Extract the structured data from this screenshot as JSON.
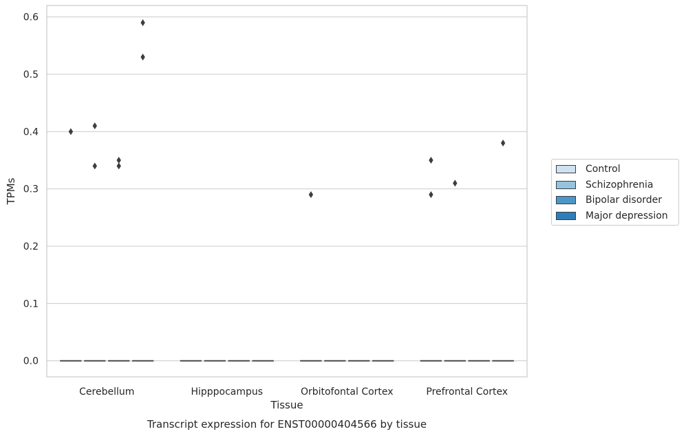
{
  "chart_data": {
    "type": "box",
    "title": "",
    "caption": "Transcript expression for ENST00000404566 by tissue",
    "xlabel": "Tissue",
    "ylabel": "TPMs",
    "ylim": [
      -0.028,
      0.62
    ],
    "yticks": [
      0.0,
      0.1,
      0.2,
      0.3,
      0.4,
      0.5,
      0.6
    ],
    "ytick_labels": [
      "0.0",
      "0.1",
      "0.2",
      "0.3",
      "0.4",
      "0.5",
      "0.6"
    ],
    "grid": true,
    "legend_position": "right, outside",
    "categories": [
      "Cerebellum",
      "Hipppocampus",
      "Orbitofontal Cortex",
      "Prefrontal Cortex"
    ],
    "series": [
      {
        "name": "Control",
        "color": "#d0e1f2",
        "boxes": [
          {
            "median": 0.0
          },
          {
            "median": 0.0
          },
          {
            "median": 0.0
          },
          {
            "median": 0.0
          }
        ],
        "outliers": [
          [
            0.4
          ],
          [],
          [
            0.29
          ],
          [
            0.29,
            0.35
          ]
        ]
      },
      {
        "name": "Schizophrenia",
        "color": "#94c4df",
        "boxes": [
          {
            "median": 0.0
          },
          {
            "median": 0.0
          },
          {
            "median": 0.0
          },
          {
            "median": 0.0
          }
        ],
        "outliers": [
          [
            0.34,
            0.41
          ],
          [],
          [],
          [
            0.31
          ]
        ]
      },
      {
        "name": "Bipolar disorder",
        "color": "#4a98c9",
        "boxes": [
          {
            "median": 0.0
          },
          {
            "median": 0.0
          },
          {
            "median": 0.0
          },
          {
            "median": 0.0
          }
        ],
        "outliers": [
          [
            0.34,
            0.35
          ],
          [],
          [],
          []
        ]
      },
      {
        "name": "Major depression",
        "color": "#2e7ebc",
        "boxes": [
          {
            "median": 0.0
          },
          {
            "median": 0.0
          },
          {
            "median": 0.0
          },
          {
            "median": 0.0
          }
        ],
        "outliers": [
          [
            0.53,
            0.59
          ],
          [],
          [],
          [
            0.38
          ]
        ]
      }
    ]
  }
}
